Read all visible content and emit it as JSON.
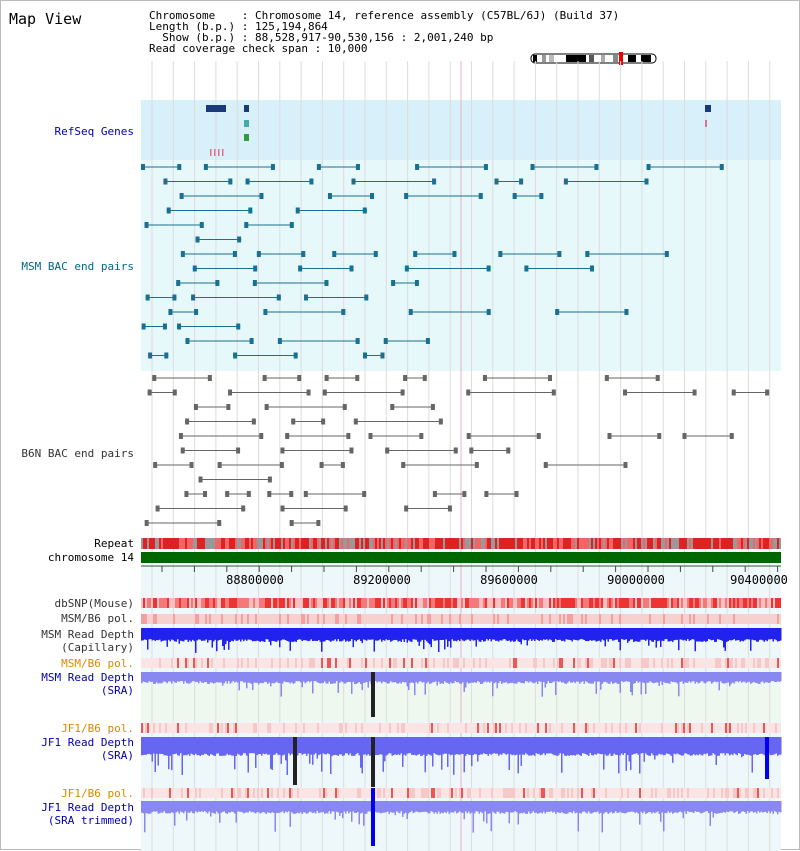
{
  "header": {
    "title": "Map View",
    "chromosome_line": "Chromosome    : Chromosome 14, reference assembly (C57BL/6J) (Build 37)",
    "length_line": "Length (b.p.) : 125,194,864",
    "show_line": "  Show (b.p.) : 88,528,917-90,530,156 : 2,001,240 bp",
    "read_coverage_line": "Read coverage check span : 10,000"
  },
  "tracks": {
    "refseq": "RefSeq Genes",
    "msm_bac": "MSM BAC end pairs",
    "b6n_bac": "B6N BAC end pairs",
    "repeat": "Repeat",
    "chromosome": "chromosome 14",
    "dbsnp": "dbSNP(Mouse)",
    "msm_b6_pol": "MSM/B6 pol.",
    "msm_read_depth_cap": "MSM Read Depth\n(Capillary)",
    "msm_b6_pol2": "MSM/B6 pol.",
    "msm_read_depth_sra": "MSM Read Depth\n(SRA)",
    "jf1_b6_pol": "JF1/B6 pol.",
    "jf1_read_depth_sra": "JF1 Read Depth\n(SRA)",
    "jf1_b6_pol2": "JF1/B6 pol.",
    "jf1_read_depth_trim": "JF1 Read Depth\n(SRA trimmed)"
  },
  "axis": {
    "ticks": [
      "88800000",
      "89200000",
      "89600000",
      "90000000",
      "90400000"
    ]
  },
  "colors": {
    "refseq_bg": "#d8f0fa",
    "bac_bg": "#e6f8fa",
    "chromosome_bar": "#006600",
    "repeat_red": "#dd2222",
    "msm_depth": "#2222ee",
    "sra_depth": "#8888f0"
  }
}
